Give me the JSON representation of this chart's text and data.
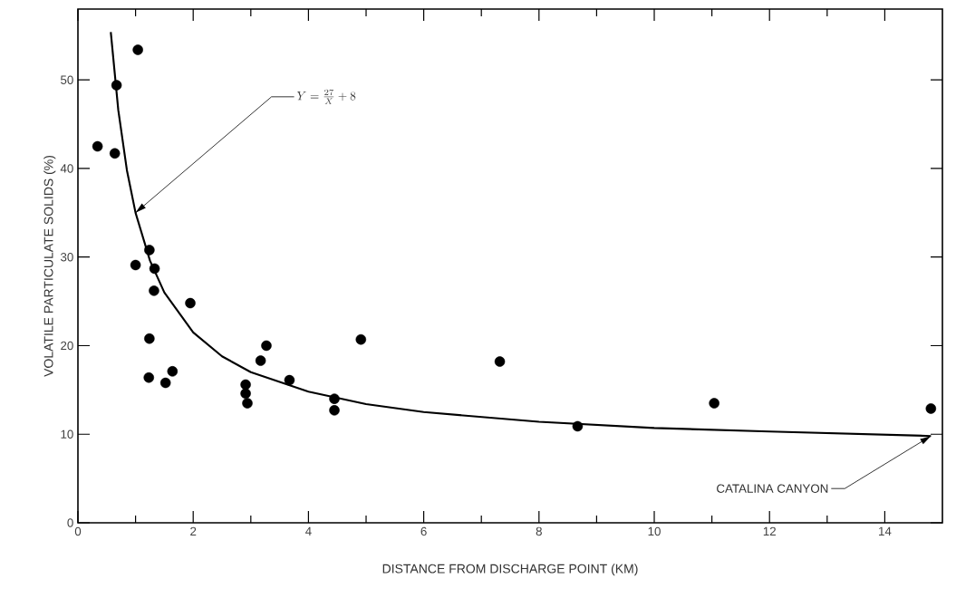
{
  "chart_data": {
    "type": "scatter",
    "xlabel": "DISTANCE FROM DISCHARGE POINT (KM)",
    "ylabel": "VOLATILE PARTICULATE SOLIDS (%)",
    "xlim": [
      0,
      15
    ],
    "ylim": [
      0,
      58
    ],
    "xticks": [
      0,
      2,
      4,
      6,
      8,
      10,
      12,
      14
    ],
    "yticks": [
      0,
      10,
      20,
      30,
      40,
      50
    ],
    "series": [
      {
        "type": "scatter",
        "marker": "circle",
        "color": "#000000",
        "x": [
          0.34,
          0.67,
          0.64,
          1.04,
          1.0,
          1.24,
          1.33,
          1.32,
          1.24,
          1.23,
          1.64,
          1.52,
          1.95,
          2.91,
          2.91,
          2.94,
          3.17,
          3.27,
          3.67,
          4.45,
          4.45,
          4.91,
          7.32,
          8.67,
          11.04,
          14.8
        ],
        "values": [
          42.5,
          49.4,
          41.7,
          53.4,
          29.1,
          30.8,
          28.7,
          26.2,
          20.8,
          16.4,
          17.1,
          15.8,
          24.8,
          15.6,
          14.6,
          13.5,
          18.3,
          20.0,
          16.1,
          14.0,
          12.7,
          20.7,
          18.2,
          10.9,
          13.5,
          12.9
        ]
      },
      {
        "type": "line",
        "marker": "none",
        "color": "#000000",
        "x": [
          0.57,
          0.7,
          0.85,
          1.0,
          1.25,
          1.5,
          2.0,
          2.5,
          3.0,
          4.0,
          5.0,
          6.0,
          8.0,
          10.0,
          12.0,
          14.8
        ],
        "values": [
          55.4,
          46.6,
          39.8,
          35.0,
          29.6,
          26.0,
          21.5,
          18.8,
          17.0,
          14.8,
          13.4,
          12.5,
          11.4,
          10.7,
          10.3,
          9.8
        ]
      }
    ],
    "annotations": [
      {
        "text": "Y = \\frac{27}{X} + 8",
        "x": 1.0,
        "y": 35.0
      },
      {
        "text": "CATALINA CANYON",
        "x": 14.8,
        "y": 9.8
      }
    ]
  }
}
